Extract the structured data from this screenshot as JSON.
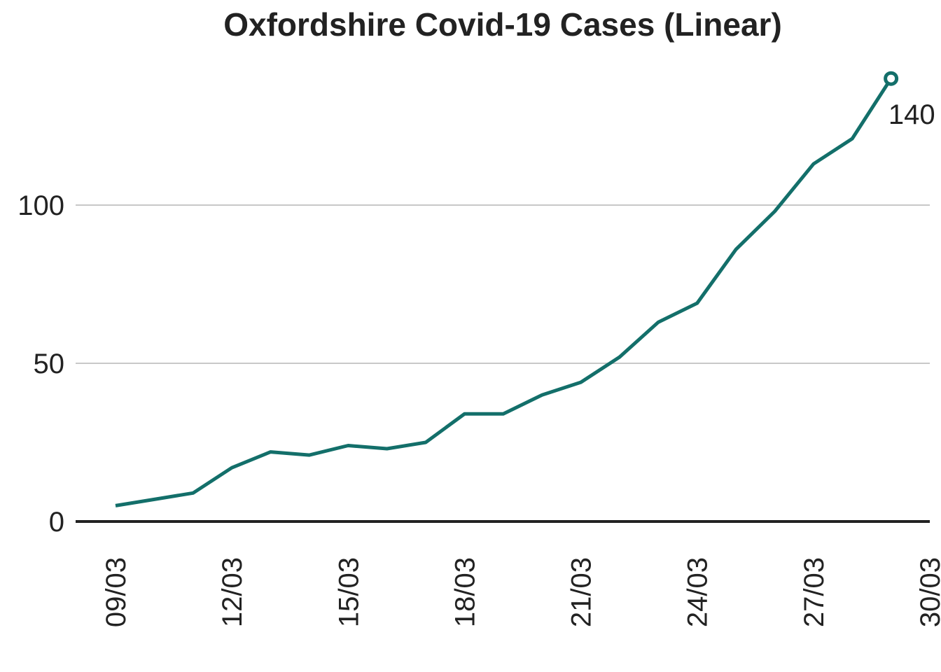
{
  "chart_data": {
    "type": "line",
    "title": "Oxfordshire Covid-19 Cases (Linear)",
    "xlabel": "",
    "ylabel": "",
    "x": [
      "09/03",
      "10/03",
      "11/03",
      "12/03",
      "13/03",
      "14/03",
      "15/03",
      "16/03",
      "17/03",
      "18/03",
      "19/03",
      "20/03",
      "21/03",
      "22/03",
      "23/03",
      "24/03",
      "25/03",
      "26/03",
      "27/03",
      "28/03",
      "29/03"
    ],
    "series": [
      {
        "values": [
          5,
          7,
          9,
          17,
          22,
          21,
          24,
          23,
          25,
          34,
          34,
          40,
          44,
          52,
          63,
          69,
          86,
          98,
          113,
          121,
          140
        ],
        "color": "#136f6a"
      }
    ],
    "x_ticks": [
      "09/03",
      "12/03",
      "15/03",
      "18/03",
      "21/03",
      "24/03",
      "27/03",
      "30/03"
    ],
    "y_ticks": [
      0,
      50,
      100
    ],
    "ylim": [
      0,
      140
    ],
    "xlim": [
      "09/03",
      "30/03"
    ],
    "grid": "horizontal",
    "end_label": "140",
    "colors": {
      "line": "#136f6a",
      "grid": "#c8c8c8",
      "baseline": "#222222",
      "text": "#222222"
    }
  }
}
